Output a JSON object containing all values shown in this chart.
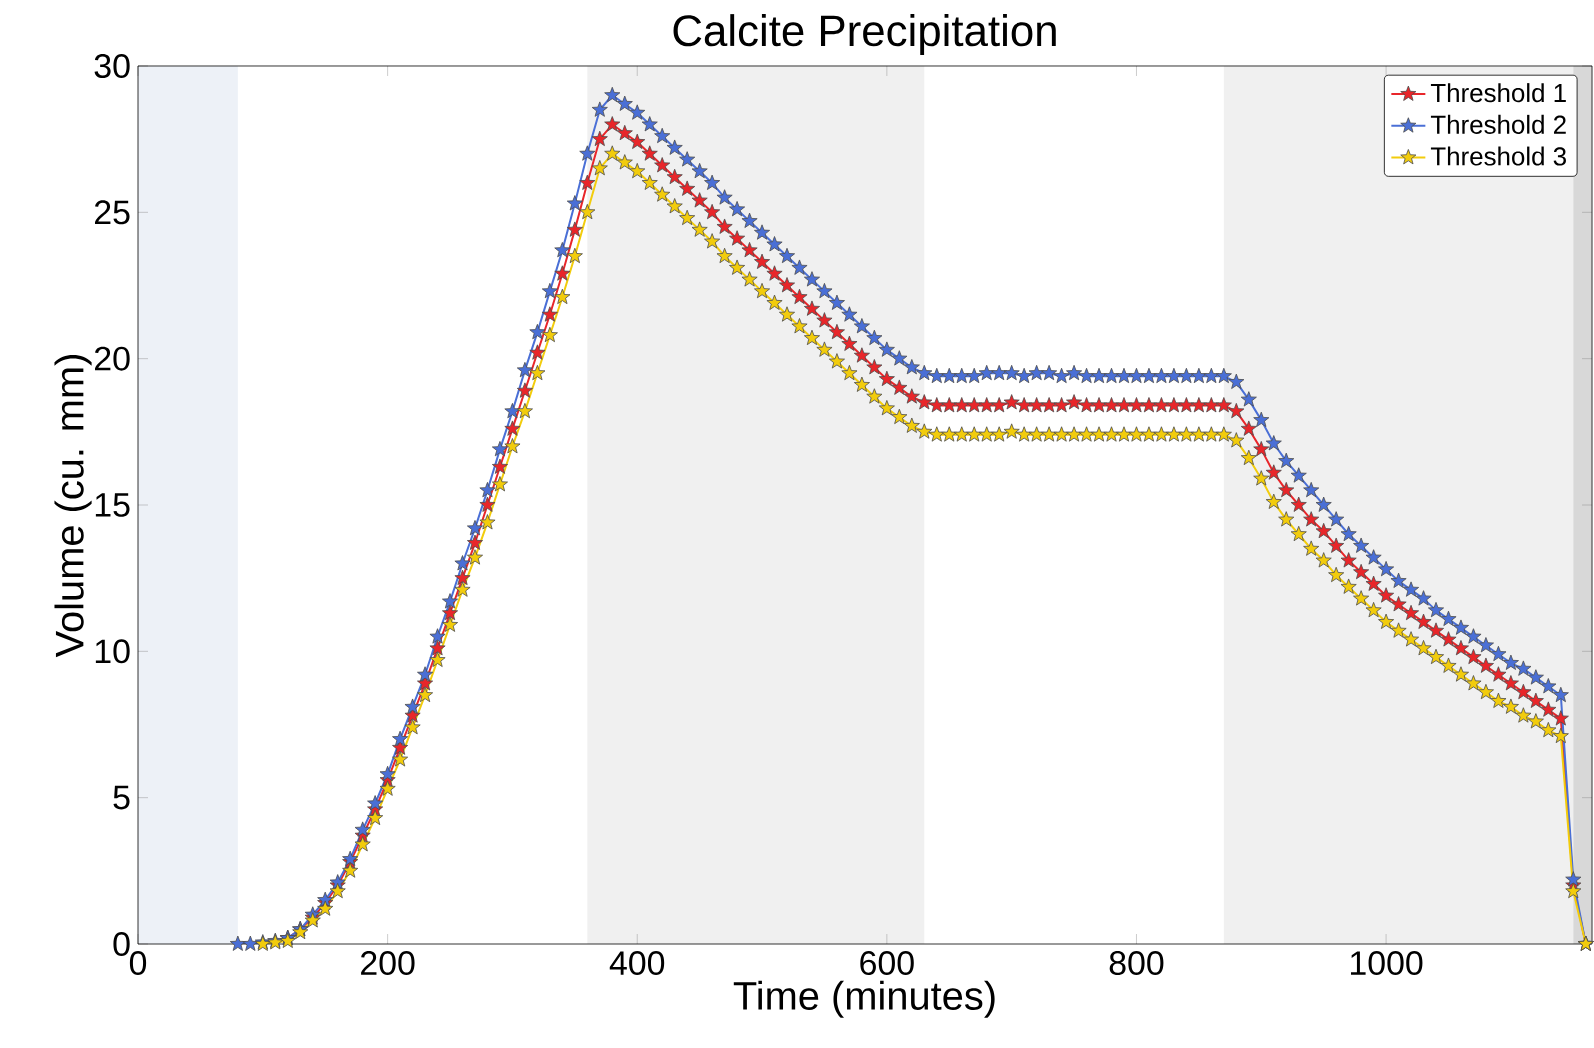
{
  "chart_data": {
    "type": "line",
    "title": "Calcite Precipitation",
    "xlabel": "Time (minutes)",
    "ylabel": "Volume (cu. mm)",
    "x": [
      80,
      90,
      100,
      110,
      120,
      130,
      140,
      150,
      160,
      170,
      180,
      190,
      200,
      210,
      220,
      230,
      240,
      250,
      260,
      270,
      280,
      290,
      300,
      310,
      320,
      330,
      340,
      350,
      360,
      370,
      380,
      390,
      400,
      410,
      420,
      430,
      440,
      450,
      460,
      470,
      480,
      490,
      500,
      510,
      520,
      530,
      540,
      550,
      560,
      570,
      580,
      590,
      600,
      610,
      620,
      630,
      640,
      650,
      660,
      670,
      680,
      690,
      700,
      710,
      720,
      730,
      740,
      750,
      760,
      770,
      780,
      790,
      800,
      810,
      820,
      830,
      840,
      850,
      860,
      870,
      880,
      890,
      900,
      910,
      920,
      930,
      940,
      950,
      960,
      970,
      980,
      990,
      1000,
      1010,
      1020,
      1030,
      1040,
      1050,
      1060,
      1070,
      1080,
      1090,
      1100,
      1110,
      1120,
      1130,
      1140,
      1150,
      1160
    ],
    "series": [
      {
        "name": "Threshold 1",
        "color": "#e8262a",
        "values": [
          null,
          null,
          null,
          null,
          0.2,
          0.5,
          0.9,
          1.4,
          2.0,
          2.8,
          3.7,
          4.6,
          5.6,
          6.7,
          7.8,
          8.9,
          10.1,
          11.3,
          12.5,
          13.7,
          15.0,
          16.3,
          17.6,
          18.9,
          20.2,
          21.5,
          22.9,
          24.4,
          26.0,
          27.5,
          28.0,
          27.7,
          27.4,
          27.0,
          26.6,
          26.2,
          25.8,
          25.4,
          25.0,
          24.5,
          24.1,
          23.7,
          23.3,
          22.9,
          22.5,
          22.1,
          21.7,
          21.3,
          20.9,
          20.5,
          20.1,
          19.7,
          19.3,
          19.0,
          18.7,
          18.5,
          18.4,
          18.4,
          18.4,
          18.4,
          18.4,
          18.4,
          18.5,
          18.4,
          18.4,
          18.4,
          18.4,
          18.5,
          18.4,
          18.4,
          18.4,
          18.4,
          18.4,
          18.4,
          18.4,
          18.4,
          18.4,
          18.4,
          18.4,
          18.4,
          18.2,
          17.6,
          16.9,
          16.1,
          15.5,
          15.0,
          14.5,
          14.1,
          13.6,
          13.1,
          12.7,
          12.3,
          11.9,
          11.6,
          11.3,
          11.0,
          10.7,
          10.4,
          10.1,
          9.8,
          9.5,
          9.2,
          8.9,
          8.6,
          8.3,
          8.0,
          7.7,
          2.0,
          0
        ]
      },
      {
        "name": "Threshold 2",
        "color": "#4a6fd6",
        "values": [
          0,
          0,
          0.05,
          0.1,
          0.2,
          0.5,
          1.0,
          1.5,
          2.1,
          2.9,
          3.9,
          4.8,
          5.8,
          7.0,
          8.1,
          9.2,
          10.5,
          11.7,
          13.0,
          14.2,
          15.5,
          16.9,
          18.2,
          19.6,
          20.9,
          22.3,
          23.7,
          25.3,
          27.0,
          28.5,
          29.0,
          28.7,
          28.4,
          28.0,
          27.6,
          27.2,
          26.8,
          26.4,
          26.0,
          25.5,
          25.1,
          24.7,
          24.3,
          23.9,
          23.5,
          23.1,
          22.7,
          22.3,
          21.9,
          21.5,
          21.1,
          20.7,
          20.3,
          20.0,
          19.7,
          19.5,
          19.4,
          19.4,
          19.4,
          19.4,
          19.5,
          19.5,
          19.5,
          19.4,
          19.5,
          19.5,
          19.4,
          19.5,
          19.4,
          19.4,
          19.4,
          19.4,
          19.4,
          19.4,
          19.4,
          19.4,
          19.4,
          19.4,
          19.4,
          19.4,
          19.2,
          18.6,
          17.9,
          17.1,
          16.5,
          16.0,
          15.5,
          15.0,
          14.5,
          14.0,
          13.6,
          13.2,
          12.8,
          12.4,
          12.1,
          11.8,
          11.4,
          11.1,
          10.8,
          10.5,
          10.2,
          9.9,
          9.6,
          9.4,
          9.1,
          8.8,
          8.5,
          2.2,
          0
        ]
      },
      {
        "name": "Threshold 3",
        "color": "#f2cc0c",
        "values": [
          null,
          null,
          0,
          0.05,
          0.1,
          0.4,
          0.8,
          1.2,
          1.8,
          2.5,
          3.4,
          4.3,
          5.3,
          6.3,
          7.4,
          8.5,
          9.7,
          10.9,
          12.1,
          13.2,
          14.4,
          15.7,
          17.0,
          18.2,
          19.5,
          20.8,
          22.1,
          23.5,
          25.0,
          26.5,
          27.0,
          26.7,
          26.4,
          26.0,
          25.6,
          25.2,
          24.8,
          24.4,
          24.0,
          23.5,
          23.1,
          22.7,
          22.3,
          21.9,
          21.5,
          21.1,
          20.7,
          20.3,
          19.9,
          19.5,
          19.1,
          18.7,
          18.3,
          18.0,
          17.7,
          17.5,
          17.4,
          17.4,
          17.4,
          17.4,
          17.4,
          17.4,
          17.5,
          17.4,
          17.4,
          17.4,
          17.4,
          17.4,
          17.4,
          17.4,
          17.4,
          17.4,
          17.4,
          17.4,
          17.4,
          17.4,
          17.4,
          17.4,
          17.4,
          17.4,
          17.2,
          16.6,
          15.9,
          15.1,
          14.5,
          14.0,
          13.5,
          13.1,
          12.6,
          12.2,
          11.8,
          11.4,
          11.0,
          10.7,
          10.4,
          10.1,
          9.8,
          9.5,
          9.2,
          8.9,
          8.6,
          8.3,
          8.1,
          7.8,
          7.6,
          7.3,
          7.1,
          1.8,
          0
        ]
      }
    ],
    "xlim": [
      0,
      1165
    ],
    "ylim": [
      0,
      30
    ],
    "xticks": [
      0,
      200,
      400,
      600,
      800,
      1000
    ],
    "yticks": [
      0,
      5,
      10,
      15,
      20,
      25,
      30
    ],
    "bands": [
      {
        "axis": "x",
        "from": 0,
        "to": 80,
        "color": "#edf1f7"
      },
      {
        "axis": "x",
        "from": 360,
        "to": 630,
        "color": "#f0f0f0"
      },
      {
        "axis": "x",
        "from": 870,
        "to": 1150,
        "color": "#f0f0f0"
      },
      {
        "axis": "x",
        "from": 1150,
        "to": 1165,
        "color": "#d8d8d8"
      }
    ],
    "marker": "star",
    "line_style": "solid",
    "legend": "top right",
    "grid": false
  }
}
